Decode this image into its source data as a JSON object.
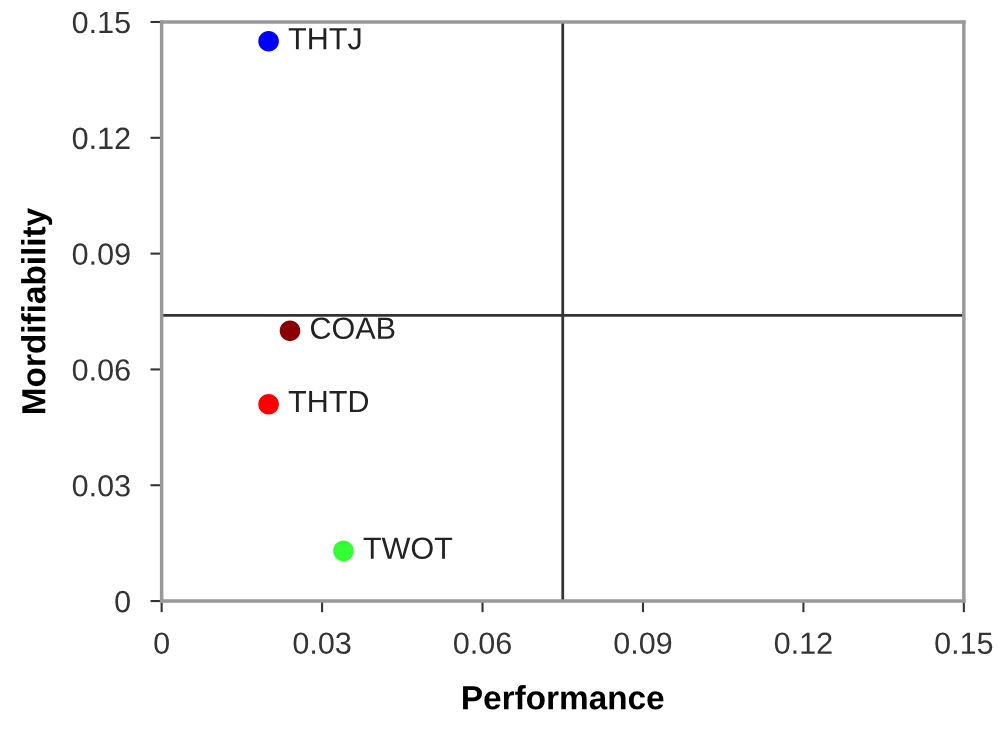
{
  "chart_data": {
    "type": "scatter",
    "xlabel": "Performance",
    "ylabel": "Mordifiability",
    "xlim": [
      0,
      0.15
    ],
    "ylim": [
      0,
      0.15
    ],
    "xticks": [
      0,
      0.03,
      0.06,
      0.09,
      0.12,
      0.15
    ],
    "yticks": [
      0,
      0.03,
      0.06,
      0.09,
      0.12,
      0.15
    ],
    "grid": false,
    "legend": false,
    "marker": "circle",
    "series": [
      {
        "name": "THTJ",
        "color": "#0000ff",
        "x": [
          0.02
        ],
        "values": [
          0.145
        ]
      },
      {
        "name": "COAB",
        "color": "#8b0000",
        "x": [
          0.024
        ],
        "values": [
          0.07
        ]
      },
      {
        "name": "THTD",
        "color": "#ff0000",
        "x": [
          0.02
        ],
        "values": [
          0.051
        ]
      },
      {
        "name": "TWOT",
        "color": "#33ff33",
        "x": [
          0.034
        ],
        "values": [
          0.013
        ]
      }
    ],
    "ref_lines": [
      {
        "axis": "x",
        "value": 0.075,
        "color": "#333333"
      },
      {
        "axis": "y",
        "value": 0.074,
        "color": "#333333"
      }
    ]
  }
}
